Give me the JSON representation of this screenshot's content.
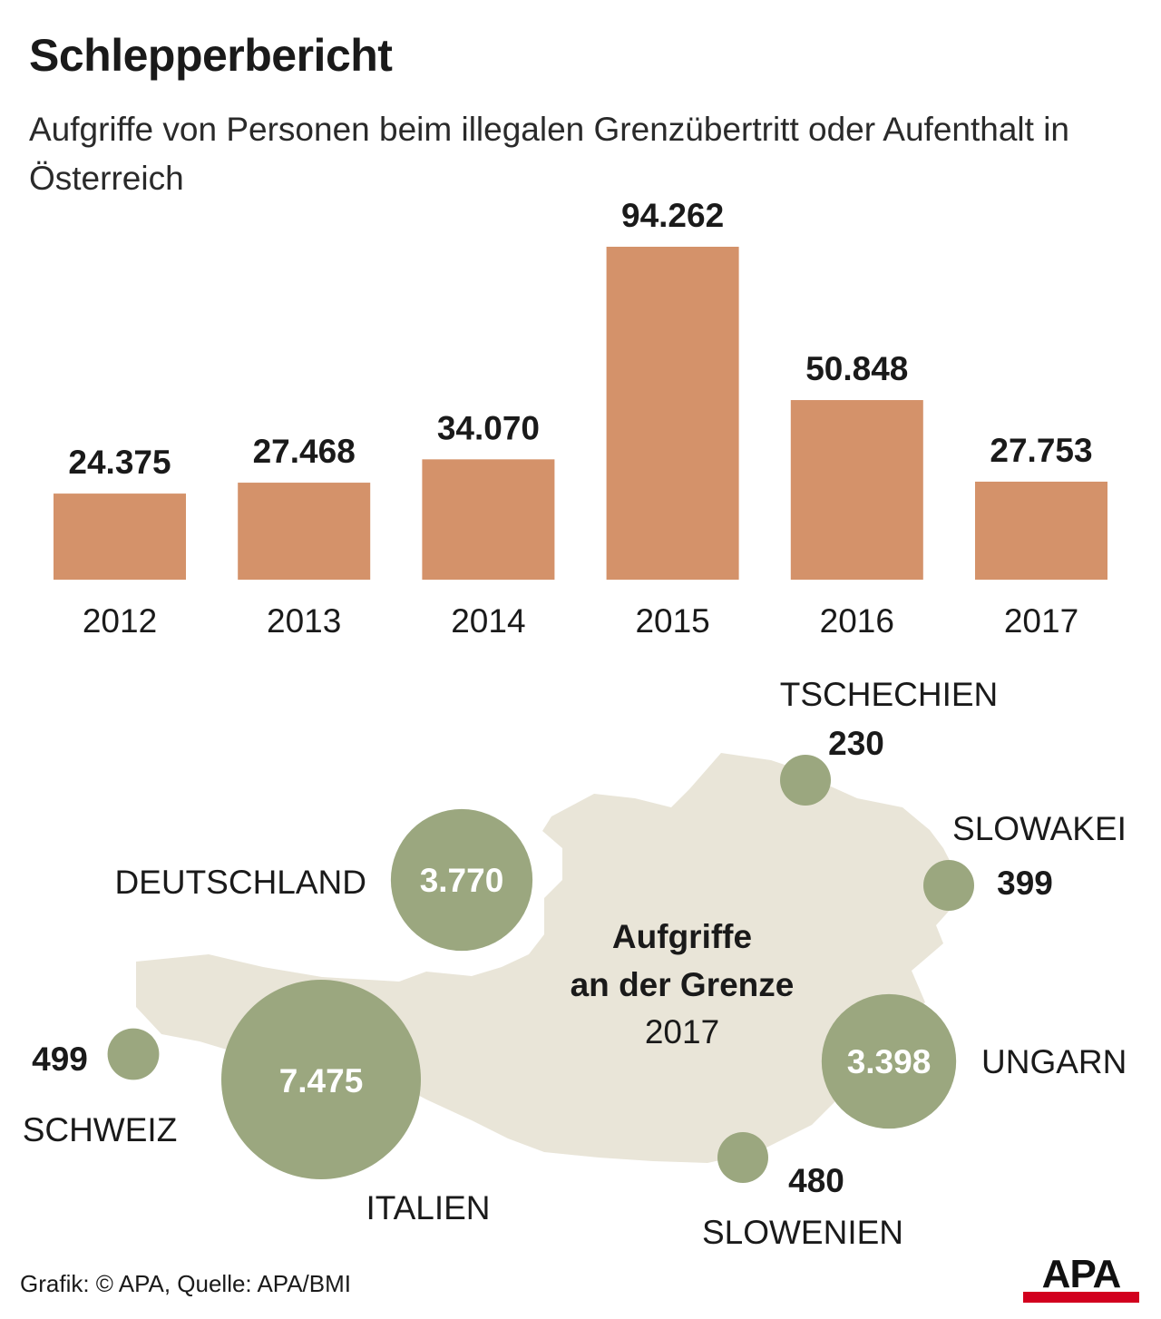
{
  "header": {
    "title": "Schlepperbericht",
    "subtitle": "Aufgriffe von Personen beim illegalen Grenzübertritt oder Aufenthalt in Österreich"
  },
  "chart_data": [
    {
      "type": "bar",
      "categories": [
        "2012",
        "2013",
        "2014",
        "2015",
        "2016",
        "2017"
      ],
      "values": [
        24375,
        27468,
        34070,
        94262,
        50848,
        27753
      ],
      "value_labels": [
        "24.375",
        "27.468",
        "34.070",
        "94.262",
        "50.848",
        "27.753"
      ],
      "bar_color": "#d4926a",
      "ylim": [
        0,
        94262
      ],
      "grid": false
    },
    {
      "type": "bubble-map",
      "title": "Aufgriffe an der Grenze",
      "year": "2017",
      "bubble_color": "#9ba77f",
      "map_color": "#e9e5d8",
      "points": [
        {
          "name": "TSCHECHIEN",
          "label": "230",
          "value": 230
        },
        {
          "name": "SLOWAKEI",
          "label": "399",
          "value": 399
        },
        {
          "name": "DEUTSCHLAND",
          "label": "3.770",
          "value": 3770
        },
        {
          "name": "UNGARN",
          "label": "3.398",
          "value": 3398
        },
        {
          "name": "SCHWEIZ",
          "label": "499",
          "value": 499
        },
        {
          "name": "ITALIEN",
          "label": "7.475",
          "value": 7475
        },
        {
          "name": "SLOWENIEN",
          "label": "480",
          "value": 480
        }
      ]
    }
  ],
  "footer": {
    "credit": "Grafik: © APA, Quelle: APA/BMI",
    "logo": "APA",
    "logo_color": "#d2001e"
  }
}
